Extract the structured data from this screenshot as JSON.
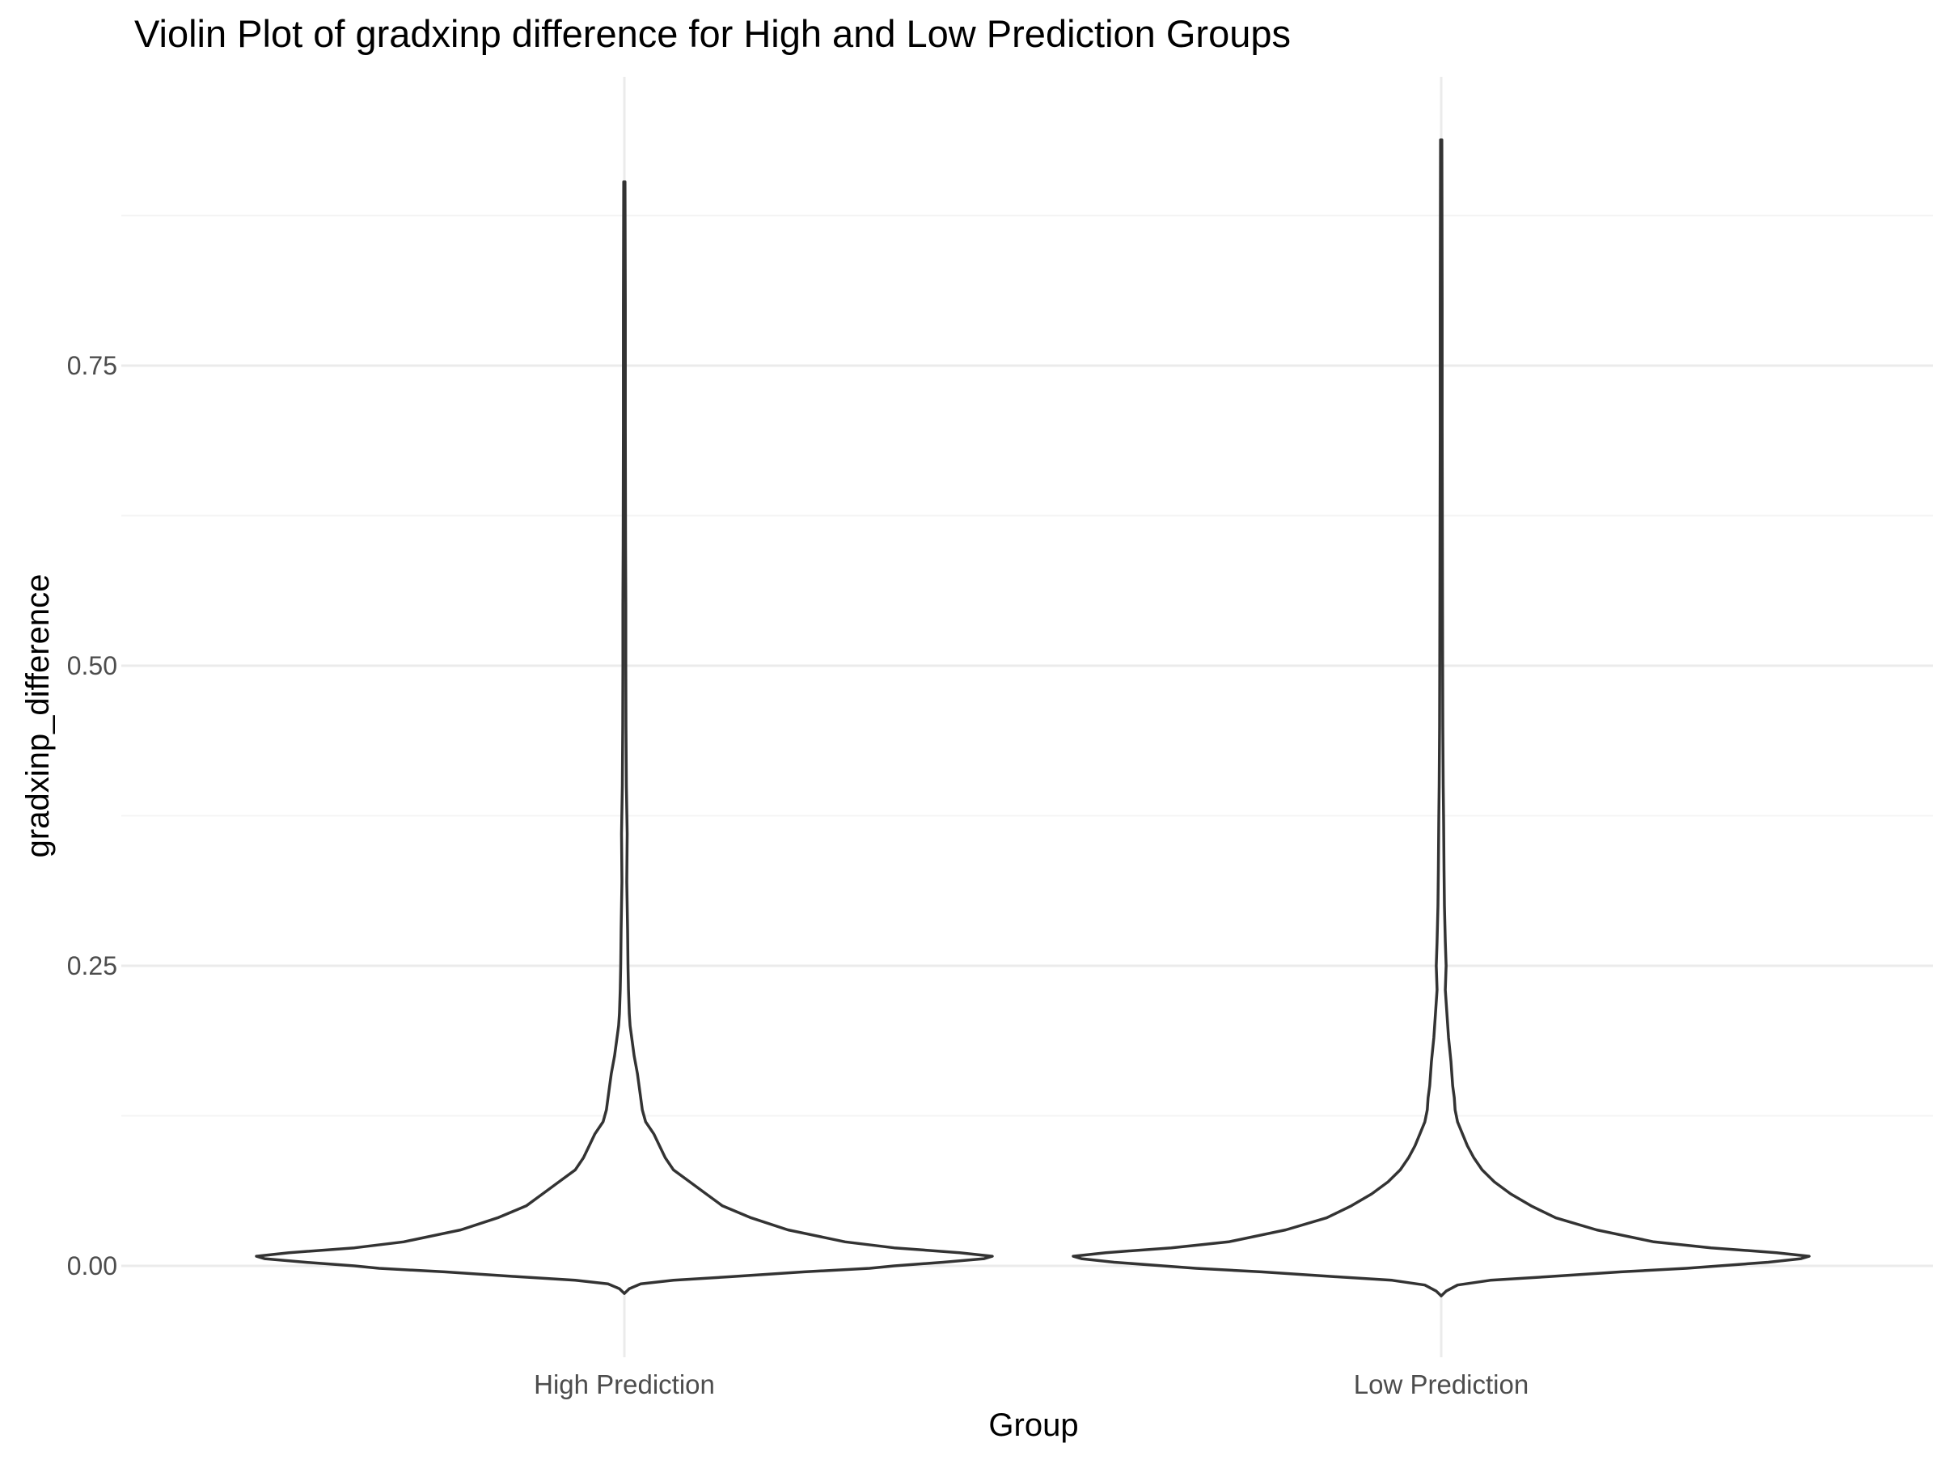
{
  "chart_data": {
    "type": "violin",
    "title": "Violin Plot of gradxinp difference for High and Low Prediction Groups",
    "xlabel": "Group",
    "ylabel": "gradxinp_difference",
    "categories": [
      "High Prediction",
      "Low Prediction"
    ],
    "ylim": [
      -0.065,
      0.98
    ],
    "yticks": [
      0.0,
      0.25,
      0.5,
      0.75
    ],
    "ytick_labels": [
      "0.00",
      "0.25",
      "0.50",
      "0.75"
    ],
    "grid": true,
    "legend": "none",
    "colors": {
      "outline": "#333333",
      "grid_major": "#ebebeb",
      "grid_minor": "#f4f4f4",
      "text": "#4d4d4d"
    },
    "density_max_halfwidth": 0.45,
    "series": [
      {
        "category": "High Prediction",
        "y_min": -0.023,
        "y_max": 0.903,
        "profile": [
          [
            -0.023,
            0.0
          ],
          [
            -0.019,
            0.006
          ],
          [
            -0.015,
            0.02
          ],
          [
            -0.012,
            0.06
          ],
          [
            -0.009,
            0.13
          ],
          [
            -0.005,
            0.22
          ],
          [
            -0.002,
            0.3
          ],
          [
            0.0,
            0.33
          ],
          [
            0.003,
            0.39
          ],
          [
            0.006,
            0.44
          ],
          [
            0.008,
            0.45
          ],
          [
            0.011,
            0.41
          ],
          [
            0.015,
            0.33
          ],
          [
            0.02,
            0.27
          ],
          [
            0.03,
            0.2
          ],
          [
            0.04,
            0.155
          ],
          [
            0.05,
            0.12
          ],
          [
            0.06,
            0.1
          ],
          [
            0.07,
            0.08
          ],
          [
            0.08,
            0.06
          ],
          [
            0.09,
            0.05
          ],
          [
            0.1,
            0.043
          ],
          [
            0.11,
            0.036
          ],
          [
            0.12,
            0.026
          ],
          [
            0.13,
            0.022
          ],
          [
            0.14,
            0.02
          ],
          [
            0.15,
            0.018
          ],
          [
            0.16,
            0.016
          ],
          [
            0.175,
            0.012
          ],
          [
            0.19,
            0.009
          ],
          [
            0.2,
            0.007
          ],
          [
            0.21,
            0.006
          ],
          [
            0.23,
            0.005
          ],
          [
            0.25,
            0.0045
          ],
          [
            0.28,
            0.004
          ],
          [
            0.32,
            0.003
          ],
          [
            0.36,
            0.0035
          ],
          [
            0.4,
            0.0025
          ],
          [
            0.45,
            0.002
          ],
          [
            0.5,
            0.0018
          ],
          [
            0.55,
            0.0018
          ],
          [
            0.6,
            0.0015
          ],
          [
            0.7,
            0.0012
          ],
          [
            0.8,
            0.0012
          ],
          [
            0.903,
            0.0008
          ]
        ]
      },
      {
        "category": "Low Prediction",
        "y_min": -0.025,
        "y_max": 0.938,
        "profile": [
          [
            -0.025,
            0.0
          ],
          [
            -0.021,
            0.006
          ],
          [
            -0.016,
            0.02
          ],
          [
            -0.012,
            0.06
          ],
          [
            -0.009,
            0.13
          ],
          [
            -0.005,
            0.22
          ],
          [
            -0.002,
            0.3
          ],
          [
            0.0,
            0.34
          ],
          [
            0.003,
            0.4
          ],
          [
            0.006,
            0.44
          ],
          [
            0.008,
            0.45
          ],
          [
            0.011,
            0.41
          ],
          [
            0.015,
            0.33
          ],
          [
            0.02,
            0.26
          ],
          [
            0.03,
            0.19
          ],
          [
            0.04,
            0.14
          ],
          [
            0.05,
            0.11
          ],
          [
            0.06,
            0.085
          ],
          [
            0.07,
            0.065
          ],
          [
            0.08,
            0.05
          ],
          [
            0.09,
            0.04
          ],
          [
            0.1,
            0.032
          ],
          [
            0.11,
            0.026
          ],
          [
            0.12,
            0.02
          ],
          [
            0.13,
            0.017
          ],
          [
            0.14,
            0.016
          ],
          [
            0.15,
            0.014
          ],
          [
            0.17,
            0.012
          ],
          [
            0.19,
            0.009
          ],
          [
            0.21,
            0.007
          ],
          [
            0.23,
            0.005
          ],
          [
            0.25,
            0.006
          ],
          [
            0.27,
            0.005
          ],
          [
            0.3,
            0.004
          ],
          [
            0.33,
            0.0035
          ],
          [
            0.37,
            0.003
          ],
          [
            0.4,
            0.0025
          ],
          [
            0.45,
            0.002
          ],
          [
            0.5,
            0.0018
          ],
          [
            0.6,
            0.0015
          ],
          [
            0.7,
            0.0012
          ],
          [
            0.8,
            0.0012
          ],
          [
            0.938,
            0.0008
          ]
        ]
      }
    ]
  }
}
